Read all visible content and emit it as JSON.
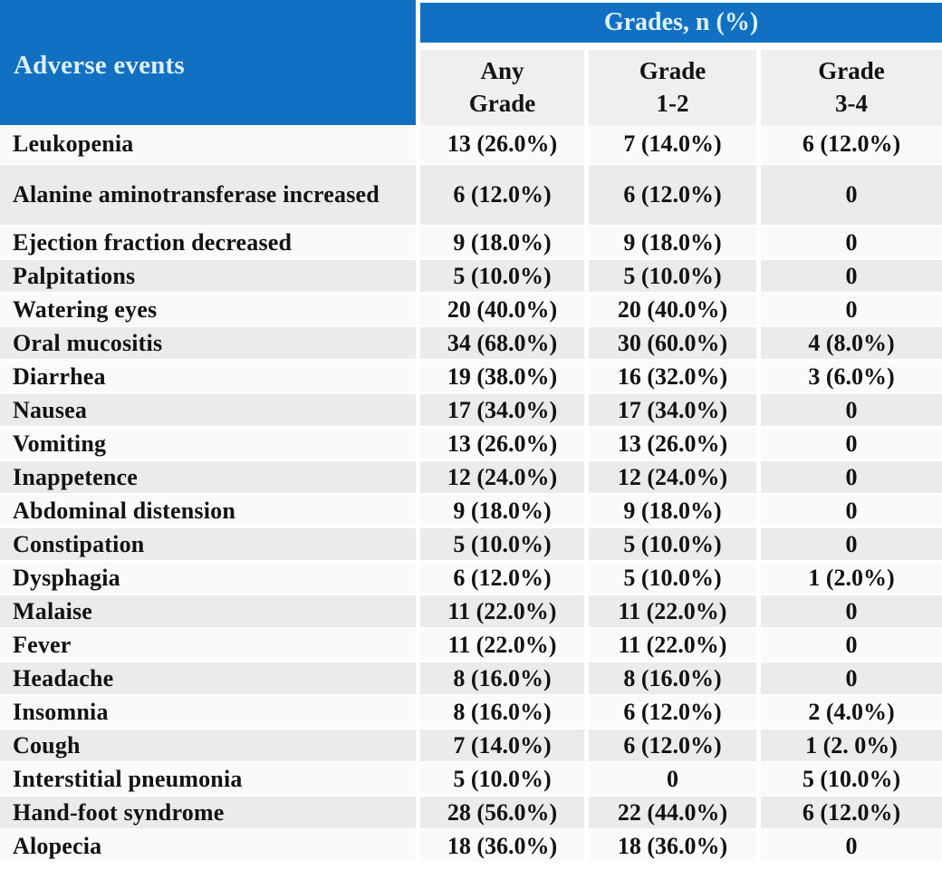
{
  "chart_data": {
    "type": "table",
    "corner_header": "Adverse events",
    "group_header": "Grades, n (%)",
    "sub_headers": [
      {
        "line1": "Any",
        "line2": "Grade"
      },
      {
        "line1": "Grade",
        "line2": "1-2"
      },
      {
        "line1": "Grade",
        "line2": "3-4"
      }
    ],
    "rows": [
      {
        "event": "Leukopenia",
        "any_grade": "13 (26.0%)",
        "grade_1_2": "7 (14.0%)",
        "grade_3_4": "6 (12.0%)"
      },
      {
        "event": "Alanine aminotransferase increased",
        "any_grade": "6 (12.0%)",
        "grade_1_2": "6 (12.0%)",
        "grade_3_4": "0"
      },
      {
        "event": "Ejection fraction decreased",
        "any_grade": "9 (18.0%)",
        "grade_1_2": "9 (18.0%)",
        "grade_3_4": "0"
      },
      {
        "event": "Palpitations",
        "any_grade": "5 (10.0%)",
        "grade_1_2": "5 (10.0%)",
        "grade_3_4": "0"
      },
      {
        "event": "Watering eyes",
        "any_grade": "20 (40.0%)",
        "grade_1_2": "20 (40.0%)",
        "grade_3_4": "0"
      },
      {
        "event": "Oral mucositis",
        "any_grade": "34 (68.0%)",
        "grade_1_2": "30 (60.0%)",
        "grade_3_4": "4 (8.0%)"
      },
      {
        "event": "Diarrhea",
        "any_grade": "19 (38.0%)",
        "grade_1_2": "16 (32.0%)",
        "grade_3_4": "3 (6.0%)"
      },
      {
        "event": "Nausea",
        "any_grade": "17 (34.0%)",
        "grade_1_2": "17 (34.0%)",
        "grade_3_4": "0"
      },
      {
        "event": "Vomiting",
        "any_grade": "13 (26.0%)",
        "grade_1_2": "13 (26.0%)",
        "grade_3_4": "0"
      },
      {
        "event": "Inappetence",
        "any_grade": "12 (24.0%)",
        "grade_1_2": "12 (24.0%)",
        "grade_3_4": "0"
      },
      {
        "event": "Abdominal distension",
        "any_grade": "9 (18.0%)",
        "grade_1_2": "9 (18.0%)",
        "grade_3_4": "0"
      },
      {
        "event": "Constipation",
        "any_grade": "5 (10.0%)",
        "grade_1_2": "5 (10.0%)",
        "grade_3_4": "0"
      },
      {
        "event": "Dysphagia",
        "any_grade": "6 (12.0%)",
        "grade_1_2": "5 (10.0%)",
        "grade_3_4": "1 (2.0%)"
      },
      {
        "event": "Malaise",
        "any_grade": "11 (22.0%)",
        "grade_1_2": "11 (22.0%)",
        "grade_3_4": "0"
      },
      {
        "event": "Fever",
        "any_grade": "11 (22.0%)",
        "grade_1_2": "11 (22.0%)",
        "grade_3_4": "0"
      },
      {
        "event": "Headache",
        "any_grade": "8 (16.0%)",
        "grade_1_2": "8 (16.0%)",
        "grade_3_4": "0"
      },
      {
        "event": "Insomnia",
        "any_grade": "8 (16.0%)",
        "grade_1_2": "6 (12.0%)",
        "grade_3_4": "2 (4.0%)"
      },
      {
        "event": "Cough",
        "any_grade": "7 (14.0%)",
        "grade_1_2": "6 (12.0%)",
        "grade_3_4": "1 (2. 0%)"
      },
      {
        "event": "Interstitial pneumonia",
        "any_grade": "5 (10.0%)",
        "grade_1_2": "0",
        "grade_3_4": "5 (10.0%)"
      },
      {
        "event": "Hand-foot syndrome",
        "any_grade": "28 (56.0%)",
        "grade_1_2": "22 (44.0%)",
        "grade_3_4": "6 (12.0%)"
      },
      {
        "event": "Alopecia",
        "any_grade": "18 (36.0%)",
        "grade_1_2": "18 (36.0%)",
        "grade_3_4": "0"
      }
    ],
    "colors": {
      "header_blue": "#1170c2",
      "header_text": "#ddf0fb",
      "row_white": "#fbfaf8",
      "row_gray": "#ebebe9",
      "subheader_bg": "#f0efed",
      "text": "#121212"
    }
  }
}
